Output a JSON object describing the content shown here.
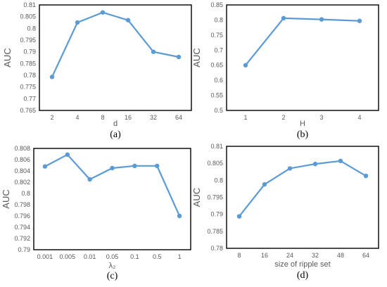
{
  "style": {
    "line_color": "#5b9bd5",
    "frame_color": "#000000",
    "text_color": "#595959"
  },
  "chart_data": [
    {
      "type": "line",
      "caption": "(a)",
      "xlabel": "d",
      "ylabel": "AUC",
      "categories": [
        "2",
        "4",
        "8",
        "16",
        "32",
        "64"
      ],
      "values": [
        0.7793,
        0.8025,
        0.8068,
        0.8035,
        0.79,
        0.7878
      ],
      "ylim": [
        0.765,
        0.81
      ],
      "yticks": [
        "0.765",
        "0.77",
        "0.775",
        "0.78",
        "0.785",
        "0.79",
        "0.795",
        "0.8",
        "0.805",
        "0.81"
      ],
      "grid": false,
      "legend": "none"
    },
    {
      "type": "line",
      "caption": "(b)",
      "xlabel": "H",
      "ylabel": "AUC",
      "categories": [
        "1",
        "2",
        "3",
        "4"
      ],
      "values": [
        0.65,
        0.806,
        0.802,
        0.797
      ],
      "ylim": [
        0.5,
        0.85
      ],
      "yticks": [
        "0.5",
        "0.55",
        "0.6",
        "0.65",
        "0.7",
        "0.75",
        "0.8",
        "0.85"
      ],
      "grid": false,
      "legend": "none"
    },
    {
      "type": "line",
      "caption": "(c)",
      "xlabel": "λ₂",
      "ylabel": "AUC",
      "categories": [
        "0.001",
        "0.005",
        "0.01",
        "0.05",
        "0.1",
        "0.5",
        "1"
      ],
      "values": [
        0.8048,
        0.8069,
        0.8025,
        0.8045,
        0.8049,
        0.8049,
        0.796
      ],
      "ylim": [
        0.79,
        0.808
      ],
      "yticks": [
        "0.79",
        "0.792",
        "0.794",
        "0.796",
        "0.798",
        "0.8",
        "0.802",
        "0.804",
        "0.806",
        "0.808"
      ],
      "grid": false,
      "legend": "none"
    },
    {
      "type": "line",
      "caption": "(d)",
      "xlabel": "size of ripple set",
      "ylabel": "AUC",
      "categories": [
        "8",
        "16",
        "24",
        "32",
        "48",
        "64"
      ],
      "values": [
        0.7894,
        0.7988,
        0.8035,
        0.8048,
        0.8057,
        0.8013
      ],
      "ylim": [
        0.78,
        0.81
      ],
      "yticks": [
        "0.78",
        "0.785",
        "0.79",
        "0.795",
        "0.8",
        "0.805",
        "0.81"
      ],
      "grid": false,
      "legend": "none"
    }
  ]
}
